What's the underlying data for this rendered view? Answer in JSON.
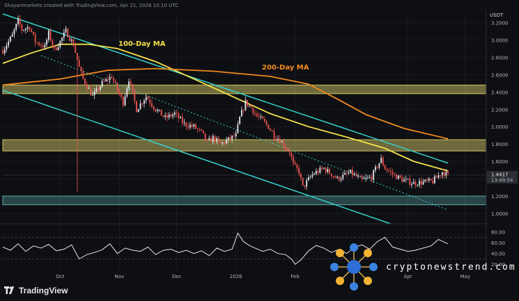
{
  "header": {
    "text": "Shayanmarkets created with TradingView.com, Apr 21, 2026 10:10 UTC"
  },
  "currency": "USDT",
  "brand": {
    "name": "TradingView"
  },
  "watermark": {
    "text": "cryptonewstrend.com"
  },
  "colors": {
    "background": "#0e0f13",
    "up": "#e6e8ee",
    "down": "#ef5350",
    "ma100": "#f5e14a",
    "ma200": "#f28a1f",
    "channel": "#35d4d0",
    "zone": "#fff07a",
    "support": "#6fd3d0"
  },
  "chart_data": [
    {
      "type": "candlestick",
      "title": "",
      "y_axis_ticks": [
        "3.2000",
        "3.0000",
        "2.8000",
        "2.6000",
        "2.4000",
        "2.2000",
        "2.0000",
        "1.8000",
        "1.6000",
        "1.4000",
        "1.2000",
        "1.0000"
      ],
      "ylim": [
        0.88,
        3.3
      ],
      "x_axis_ticks": [
        "Oct",
        "Nov",
        "Dec",
        "2026",
        "Feb",
        "Apr",
        "May"
      ],
      "x_tick_days": [
        30,
        61,
        91,
        122,
        153,
        212,
        242
      ],
      "xlim_days": [
        0,
        253
      ],
      "last_price": {
        "value": 1.4417,
        "label": "1.4417",
        "countdown": "13:49:54"
      },
      "close_series": {
        "day": [
          0,
          5,
          8,
          10,
          14,
          17,
          22,
          24,
          27,
          30,
          33,
          37,
          40,
          42,
          47,
          52,
          57,
          60,
          63,
          66,
          70,
          75,
          80,
          85,
          90,
          95,
          100,
          104,
          107,
          110,
          114,
          118,
          122,
          124,
          127,
          130,
          133,
          136,
          139,
          142,
          145,
          148,
          150,
          152,
          155,
          157,
          162,
          168,
          175,
          182,
          188,
          193,
          196,
          198,
          200,
          205,
          210,
          215,
          220,
          225,
          230,
          233
        ],
        "close": [
          2.88,
          3.05,
          3.22,
          3.12,
          3.15,
          2.98,
          2.92,
          3.08,
          2.88,
          2.98,
          3.1,
          2.95,
          2.68,
          2.55,
          2.35,
          2.5,
          2.58,
          2.42,
          2.28,
          2.55,
          2.2,
          2.35,
          2.2,
          2.1,
          2.15,
          2.03,
          2.0,
          1.93,
          1.82,
          1.87,
          1.8,
          1.85,
          1.9,
          2.1,
          2.28,
          2.22,
          2.12,
          2.07,
          2.0,
          1.9,
          1.85,
          1.76,
          1.72,
          1.56,
          1.48,
          1.3,
          1.45,
          1.52,
          1.4,
          1.47,
          1.38,
          1.42,
          1.55,
          1.62,
          1.52,
          1.44,
          1.38,
          1.35,
          1.36,
          1.37,
          1.48,
          1.44
        ]
      },
      "spike_low": {
        "day": 39,
        "low": 1.25
      },
      "moving_averages": [
        {
          "name": "100-Day MA",
          "day": [
            0,
            15,
            30,
            45,
            60,
            80,
            100,
            120,
            140,
            160,
            180,
            200,
            215,
            233
          ],
          "value": [
            2.73,
            2.85,
            2.95,
            2.95,
            2.9,
            2.75,
            2.55,
            2.35,
            2.15,
            2.0,
            1.88,
            1.75,
            1.6,
            1.49
          ]
        },
        {
          "name": "200-Day MA",
          "day": [
            0,
            30,
            55,
            80,
            110,
            140,
            160,
            175,
            190,
            210,
            233
          ],
          "value": [
            2.48,
            2.55,
            2.65,
            2.67,
            2.64,
            2.58,
            2.49,
            2.32,
            2.14,
            1.98,
            1.86
          ]
        }
      ],
      "channel_lines": [
        {
          "role": "upper",
          "from": {
            "day": 0,
            "price": 3.3
          },
          "to": {
            "day": 233,
            "price": 1.58
          }
        },
        {
          "role": "lower",
          "from": {
            "day": 0,
            "price": 2.42
          },
          "to": {
            "day": 203,
            "price": 0.88
          }
        },
        {
          "role": "midline",
          "from": {
            "day": 20,
            "price": 2.82
          },
          "to": {
            "day": 233,
            "price": 1.04
          }
        }
      ],
      "zones": [
        {
          "from": 2.38,
          "to": 2.48
        },
        {
          "from": 1.72,
          "to": 1.85
        },
        {
          "from": 1.1,
          "to": 1.2
        }
      ]
    },
    {
      "type": "line",
      "title": "",
      "y_axis_ticks": [
        "80.00",
        "60.00",
        "40.00",
        "20.00"
      ],
      "ylim": [
        10,
        95
      ],
      "reference_levels": [
        70,
        30
      ],
      "series": [
        {
          "day": [
            0,
            4,
            8,
            12,
            16,
            20,
            24,
            28,
            32,
            36,
            40,
            44,
            48,
            52,
            56,
            60,
            64,
            68,
            72,
            76,
            80,
            84,
            88,
            92,
            96,
            100,
            104,
            108,
            112,
            116,
            120,
            123,
            126,
            129,
            132,
            136,
            140,
            144,
            148,
            151,
            153,
            156,
            160,
            164,
            168,
            172,
            176,
            180,
            184,
            188,
            192,
            196,
            200,
            204,
            208,
            212,
            216,
            220,
            224,
            228,
            233
          ],
          "value": [
            52,
            46,
            58,
            44,
            54,
            50,
            57,
            45,
            48,
            56,
            30,
            38,
            42,
            47,
            58,
            40,
            50,
            46,
            44,
            52,
            38,
            46,
            48,
            42,
            46,
            40,
            45,
            36,
            50,
            44,
            48,
            78,
            62,
            55,
            50,
            44,
            48,
            40,
            38,
            30,
            20,
            28,
            45,
            55,
            50,
            42,
            48,
            40,
            52,
            56,
            48,
            62,
            70,
            52,
            48,
            44,
            46,
            50,
            54,
            66,
            58
          ]
        }
      ]
    }
  ]
}
